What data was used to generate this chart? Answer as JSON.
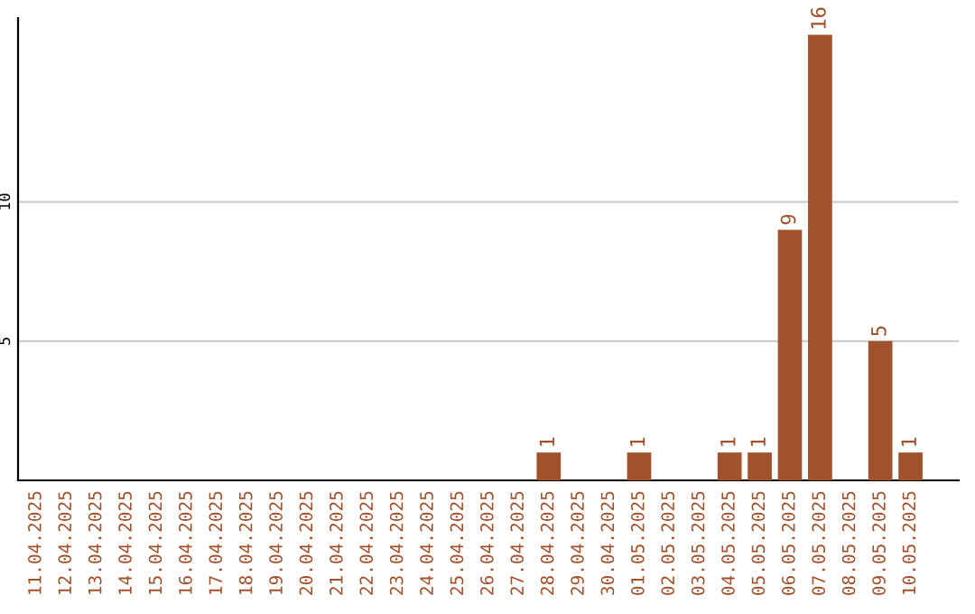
{
  "chart_data": {
    "type": "bar",
    "categories": [
      "11.04.2025",
      "12.04.2025",
      "13.04.2025",
      "14.04.2025",
      "15.04.2025",
      "16.04.2025",
      "17.04.2025",
      "18.04.2025",
      "19.04.2025",
      "20.04.2025",
      "21.04.2025",
      "22.04.2025",
      "23.04.2025",
      "24.04.2025",
      "25.04.2025",
      "26.04.2025",
      "27.04.2025",
      "28.04.2025",
      "29.04.2025",
      "30.04.2025",
      "01.05.2025",
      "02.05.2025",
      "03.05.2025",
      "04.05.2025",
      "05.05.2025",
      "06.05.2025",
      "07.05.2025",
      "08.05.2025",
      "09.05.2025",
      "10.05.2025"
    ],
    "values": [
      null,
      null,
      null,
      null,
      null,
      null,
      null,
      null,
      null,
      null,
      null,
      null,
      null,
      null,
      null,
      null,
      null,
      1,
      null,
      null,
      1,
      null,
      null,
      1,
      1,
      9,
      16,
      null,
      5,
      1
    ],
    "color": "#a0522d",
    "ylim": [
      0,
      16.6
    ],
    "yticks": [
      5,
      10
    ],
    "grid": "y",
    "data_labels": true
  }
}
